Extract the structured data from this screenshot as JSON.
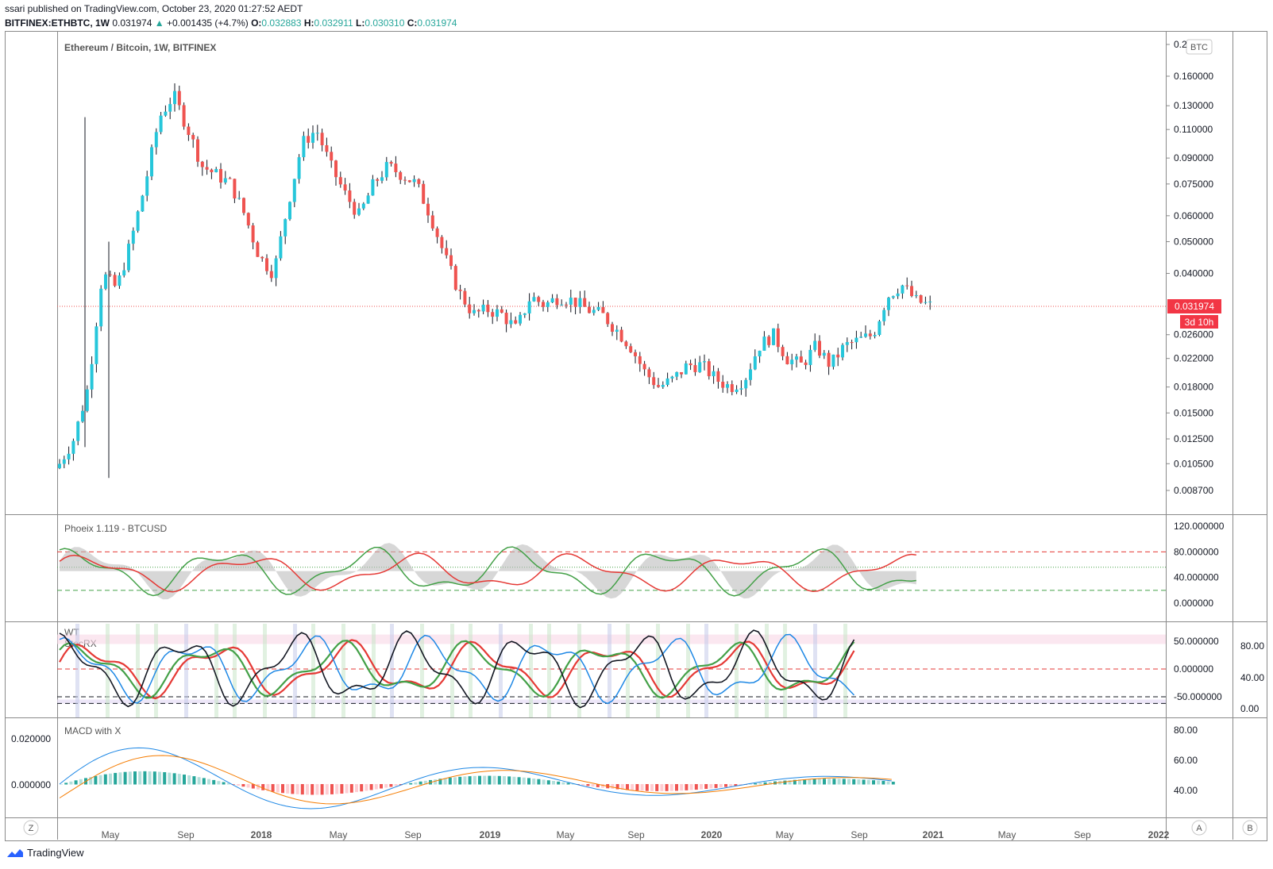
{
  "header": {
    "published": "ssari published on TradingView.com, October 23, 2020 01:27:52 AEDT",
    "symbol": "BITFINEX:ETHBTC, 1W",
    "last": "0.031974",
    "arrow": "▲",
    "change": "+0.001435 (+4.7%)",
    "o_label": "O:",
    "o": "0.032883",
    "h_label": "H:",
    "h": "0.032911",
    "l_label": "L:",
    "l": "0.030310",
    "c_label": "C:",
    "c": "0.031974"
  },
  "main_pane": {
    "title": "Ethereum / Bitcoin, 1W, BITFINEX",
    "currency_badge": "BTC",
    "price_label": "0.031974",
    "countdown": "3d 10h",
    "axis_labels": [
      "0.2",
      "0.160000",
      "0.130000",
      "0.110000",
      "0.090000",
      "0.075000",
      "0.060000",
      "0.050000",
      "0.040000",
      "0.026000",
      "0.022000",
      "0.018000",
      "0.015000",
      "0.012500",
      "0.010500",
      "0.008700"
    ]
  },
  "phoenix_pane": {
    "title": "Phoeix 1.119 - BTCUSD",
    "axis_labels": [
      "120.000000",
      "80.000000",
      "40.000000",
      "0.000000"
    ]
  },
  "wt_pane": {
    "title1": "WT",
    "title2": "StocRX",
    "axis_labels_left": [
      "50.000000",
      "0.000000",
      "-50.000000"
    ],
    "axis_labels_right": [
      "80.00",
      "40.00",
      "0.00"
    ]
  },
  "macd_pane": {
    "title": "MACD with X",
    "left_labels": [
      "0.020000",
      "0.000000"
    ],
    "right_labels": [
      "80.00",
      "60.00",
      "40.00"
    ]
  },
  "time_axis": {
    "labels": [
      "May",
      "Sep",
      "2018",
      "May",
      "Sep",
      "2019",
      "May",
      "Sep",
      "2020",
      "May",
      "Sep",
      "2021",
      "May",
      "Sep",
      "2022"
    ],
    "left_button": "Z",
    "right_buttons": [
      "A",
      "B"
    ]
  },
  "footer": {
    "brand": "TradingView"
  },
  "colors": {
    "up": "#26c6da",
    "down": "#ef5350",
    "green_line": "#43a047",
    "red_line": "#e53935",
    "blue_line": "#1e88e5",
    "accent": "#f23645"
  },
  "chart_data": {
    "type": "candlestick",
    "title": "Ethereum / Bitcoin, 1W, BITFINEX",
    "ylim": [
      0.0087,
      0.2
    ],
    "y_scale": "log",
    "last_close": 0.031974,
    "x": [
      "May",
      "Sep",
      "2018",
      "May",
      "Sep",
      "2019",
      "May",
      "Sep",
      "2020",
      "May",
      "Sep",
      "2021",
      "May",
      "Sep",
      "2022"
    ],
    "close_path": [
      0.0105,
      0.0125,
      0.018,
      0.04,
      0.036,
      0.05,
      0.075,
      0.12,
      0.14,
      0.11,
      0.085,
      0.08,
      0.075,
      0.06,
      0.045,
      0.04,
      0.065,
      0.1,
      0.11,
      0.085,
      0.07,
      0.06,
      0.075,
      0.085,
      0.08,
      0.075,
      0.06,
      0.045,
      0.035,
      0.03,
      0.031,
      0.03,
      0.027,
      0.034,
      0.032,
      0.034,
      0.033,
      0.031,
      0.03,
      0.027,
      0.024,
      0.02,
      0.018,
      0.019,
      0.021,
      0.021,
      0.019,
      0.018,
      0.019,
      0.024,
      0.026,
      0.022,
      0.021,
      0.024,
      0.021,
      0.024,
      0.025,
      0.026,
      0.034,
      0.037,
      0.033,
      0.0319
    ]
  }
}
